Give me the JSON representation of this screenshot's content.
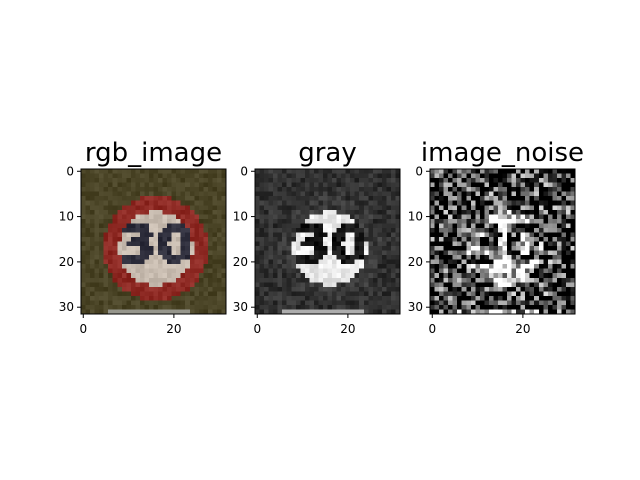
{
  "chart_data": [
    {
      "type": "heatmap",
      "title": "rgb_image",
      "image_size": [
        32,
        32
      ],
      "xlim": [
        -0.5,
        31.5
      ],
      "ylim": [
        31.5,
        -0.5
      ],
      "xticks": [
        0,
        20
      ],
      "yticks": [
        0,
        10,
        20,
        30
      ],
      "cmap": "rgb",
      "content": "traffic sign: red circle with number 30, photographed on dark olive-green background"
    },
    {
      "type": "heatmap",
      "title": "gray",
      "image_size": [
        32,
        32
      ],
      "xlim": [
        -0.5,
        31.5
      ],
      "ylim": [
        31.5,
        -0.5
      ],
      "xticks": [
        0,
        20
      ],
      "yticks": [
        0,
        10,
        20,
        30
      ],
      "cmap": "gray",
      "content": "grayscale version of the 30 speed-limit sign"
    },
    {
      "type": "heatmap",
      "title": "image_noise",
      "image_size": [
        32,
        32
      ],
      "xlim": [
        -0.5,
        31.5
      ],
      "ylim": [
        31.5,
        -0.5
      ],
      "xticks": [
        0,
        20
      ],
      "yticks": [
        0,
        10,
        20,
        30
      ],
      "cmap": "gray",
      "content": "grayscale sign with strong random pixel noise"
    }
  ],
  "colors": {
    "background": "#4a4426",
    "sign_red": "#8e2a24",
    "sign_white": "#c8bcb0",
    "digit": "#2e2e3c",
    "axis": "#000000"
  }
}
